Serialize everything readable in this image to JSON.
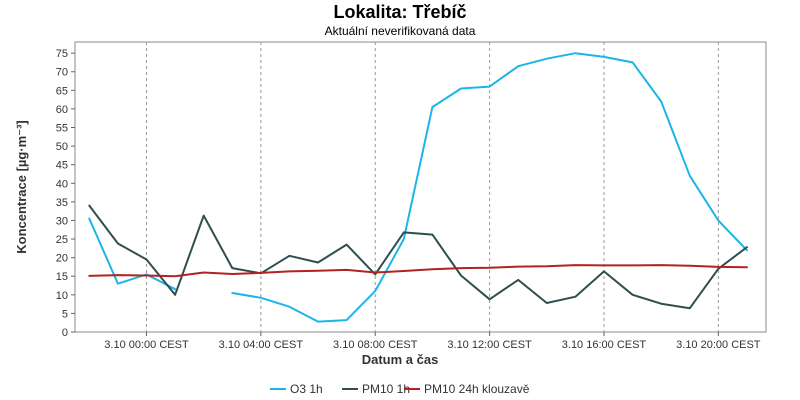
{
  "chart_data": {
    "type": "line",
    "title": "Lokalita: Třebíč",
    "subtitle": "Aktuální neverifikovaná data",
    "xlabel": "Datum a čas",
    "ylabel": "Koncentrace [µg·m⁻³]",
    "ylim": [
      0,
      78
    ],
    "y_ticks": [
      0,
      5,
      10,
      15,
      20,
      25,
      30,
      35,
      40,
      45,
      50,
      55,
      60,
      65,
      70,
      75
    ],
    "xlim": [
      "2023-10-02T21:30",
      "2023-10-03T21:40"
    ],
    "x_ticks": [
      {
        "x": "2023-10-03T00:00",
        "label": "3.10 00:00 CEST"
      },
      {
        "x": "2023-10-03T04:00",
        "label": "3.10 04:00 CEST"
      },
      {
        "x": "2023-10-03T08:00",
        "label": "3.10 08:00 CEST"
      },
      {
        "x": "2023-10-03T12:00",
        "label": "3.10 12:00 CEST"
      },
      {
        "x": "2023-10-03T16:00",
        "label": "3.10 16:00 CEST"
      },
      {
        "x": "2023-10-03T20:00",
        "label": "3.10 20:00 CEST"
      }
    ],
    "grid": true,
    "legend_position": "bottom",
    "x": [
      "2023-10-02T22:00",
      "2023-10-02T23:00",
      "2023-10-03T00:00",
      "2023-10-03T01:00",
      "2023-10-03T02:00",
      "2023-10-03T03:00",
      "2023-10-03T04:00",
      "2023-10-03T05:00",
      "2023-10-03T06:00",
      "2023-10-03T07:00",
      "2023-10-03T08:00",
      "2023-10-03T09:00",
      "2023-10-03T10:00",
      "2023-10-03T11:00",
      "2023-10-03T12:00",
      "2023-10-03T13:00",
      "2023-10-03T14:00",
      "2023-10-03T15:00",
      "2023-10-03T16:00",
      "2023-10-03T17:00",
      "2023-10-03T18:00",
      "2023-10-03T19:00",
      "2023-10-03T20:00",
      "2023-10-03T21:00"
    ],
    "series": [
      {
        "name": "O3 1h",
        "color": "#1cb5e8",
        "values": [
          30.5,
          13.0,
          15.5,
          11.5,
          null,
          10.5,
          9.2,
          6.8,
          2.8,
          3.2,
          11.0,
          25.0,
          60.5,
          65.5,
          66.0,
          71.5,
          73.5,
          75.0,
          74.0,
          72.5,
          62.0,
          42.0,
          30.0,
          22.0
        ]
      },
      {
        "name": "PM10 1h",
        "color": "#2f4f4f",
        "values": [
          34.0,
          23.8,
          19.5,
          10.0,
          31.3,
          17.2,
          15.8,
          20.5,
          18.7,
          23.5,
          15.5,
          26.8,
          26.2,
          15.2,
          8.8,
          14.0,
          7.8,
          9.5,
          16.3,
          10.0,
          7.6,
          6.4,
          17.0,
          22.8
        ]
      },
      {
        "name": "PM10 24h klouzavě",
        "color": "#b22222",
        "values": [
          15.1,
          15.3,
          15.2,
          15.0,
          16.0,
          15.6,
          15.9,
          16.3,
          16.5,
          16.7,
          16.0,
          16.4,
          16.9,
          17.2,
          17.3,
          17.6,
          17.7,
          18.0,
          17.9,
          17.9,
          18.0,
          17.8,
          17.5,
          17.4
        ]
      }
    ]
  }
}
